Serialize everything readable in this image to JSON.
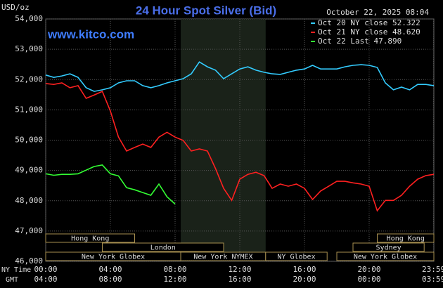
{
  "chart_data": {
    "type": "line",
    "title": "24 Hour Spot Silver (Bid)",
    "timestamp": "October 22, 2025 08:04",
    "website": "www.kitco.com",
    "y_label": "USD/oz",
    "x_label": "NY Time",
    "x2_label": "GMT",
    "x": [
      0,
      0.5,
      1,
      1.5,
      2,
      2.5,
      3,
      3.5,
      4,
      4.5,
      5,
      5.5,
      6,
      6.5,
      7,
      7.5,
      8,
      8.5,
      9,
      9.5,
      10,
      10.5,
      11,
      11.5,
      12,
      12.5,
      13,
      13.5,
      14,
      14.5,
      15,
      15.5,
      16,
      16.5,
      17,
      17.5,
      18,
      18.5,
      19,
      19.5,
      20,
      20.5,
      21,
      21.5,
      22,
      22.5,
      23,
      23.5,
      24
    ],
    "series": [
      {
        "name": "Oct 20 NY close 52.322",
        "color": "#33ccff",
        "values": [
          52150,
          52070,
          52120,
          52190,
          52070,
          51730,
          51610,
          51660,
          51730,
          51890,
          51960,
          51960,
          51800,
          51730,
          51800,
          51890,
          51960,
          52030,
          52190,
          52580,
          52420,
          52310,
          52030,
          52190,
          52350,
          52420,
          52310,
          52240,
          52190,
          52170,
          52240,
          52310,
          52350,
          52470,
          52350,
          52350,
          52350,
          52420,
          52470,
          52490,
          52470,
          52400,
          51890,
          51660,
          51750,
          51660,
          51840,
          51840,
          51800
        ]
      },
      {
        "name": "Oct 21 NY close 48.620",
        "color": "#ff2020",
        "values": [
          51870,
          51840,
          51890,
          51730,
          51800,
          51380,
          51490,
          51610,
          50960,
          50100,
          49640,
          49760,
          49870,
          49760,
          50100,
          50260,
          50100,
          49990,
          49640,
          49710,
          49640,
          49060,
          48410,
          48010,
          48710,
          48870,
          48940,
          48830,
          48410,
          48550,
          48480,
          48550,
          48410,
          48040,
          48320,
          48480,
          48640,
          48640,
          48590,
          48550,
          48480,
          47670,
          48010,
          48010,
          48180,
          48480,
          48710,
          48830,
          48870
        ]
      },
      {
        "name": "Oct 22 Last 47.890",
        "color": "#33ff33",
        "values": [
          48890,
          48840,
          48870,
          48870,
          48890,
          49010,
          49130,
          49180,
          48890,
          48820,
          48430,
          48360,
          48270,
          48180,
          48550,
          48130,
          47890,
          null,
          null,
          null,
          null,
          null,
          null,
          null,
          null,
          null,
          null,
          null,
          null,
          null,
          null,
          null,
          null,
          null,
          null,
          null,
          null,
          null,
          null,
          null,
          null,
          null,
          null,
          null,
          null,
          null,
          null,
          null,
          null
        ]
      }
    ],
    "xlim": [
      0,
      24
    ],
    "ylim": [
      46000,
      54000
    ],
    "yticks": [
      {
        "value": 46000,
        "label": "46,000"
      },
      {
        "value": 47000,
        "label": "47,000"
      },
      {
        "value": 48000,
        "label": "48,000"
      },
      {
        "value": 49000,
        "label": "49,000"
      },
      {
        "value": 50000,
        "label": "50,000"
      },
      {
        "value": 51000,
        "label": "51,000"
      },
      {
        "value": 52000,
        "label": "52,000"
      },
      {
        "value": 53000,
        "label": "53,000"
      },
      {
        "value": 54000,
        "label": "54,000"
      }
    ],
    "xticks": [
      {
        "value": 0,
        "label": "00:00"
      },
      {
        "value": 4,
        "label": "04:00"
      },
      {
        "value": 8,
        "label": "08:00"
      },
      {
        "value": 12,
        "label": "12:00"
      },
      {
        "value": 16,
        "label": "16:00"
      },
      {
        "value": 20,
        "label": "20:00"
      },
      {
        "value": 23.98,
        "label": "23:59"
      }
    ],
    "x2ticks": [
      {
        "value": 0,
        "label": "04:00"
      },
      {
        "value": 4,
        "label": "08:00"
      },
      {
        "value": 8,
        "label": "12:00"
      },
      {
        "value": 12,
        "label": "16:00"
      },
      {
        "value": 16,
        "label": "20:00"
      },
      {
        "value": 20,
        "label": "00:00"
      },
      {
        "value": 23.98,
        "label": "03:59"
      }
    ],
    "highlight": [
      8.35,
      13.6
    ],
    "grid": true,
    "sessions": [
      {
        "label": "Hong Kong",
        "start": 0,
        "end": 5.5,
        "row": 0
      },
      {
        "label": "London",
        "start": 3.5,
        "end": 11,
        "row": 1
      },
      {
        "label": "New York Globex",
        "start": 0,
        "end": 8.35,
        "row": 2
      },
      {
        "label": "New York NYMEX",
        "start": 8.35,
        "end": 13.6,
        "row": 2
      },
      {
        "label": "NY Globex",
        "start": 13.6,
        "end": 17.4,
        "row": 2
      },
      {
        "label": "Hong Kong",
        "start": 20.5,
        "end": 24,
        "row": 0
      },
      {
        "label": "Sydney",
        "start": 19,
        "end": 23.4,
        "row": 1
      },
      {
        "label": "New York Globex",
        "start": 18,
        "end": 24,
        "row": 2
      }
    ]
  }
}
